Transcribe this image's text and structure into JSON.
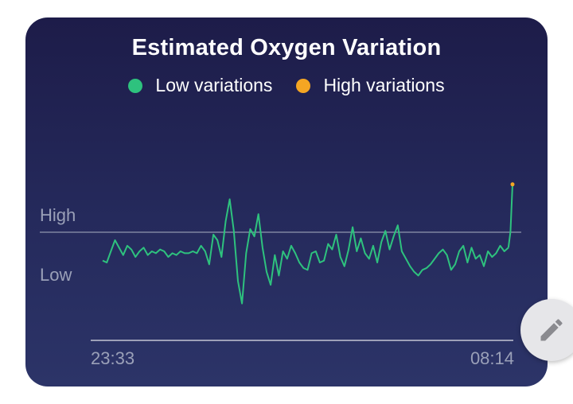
{
  "chart_data": {
    "type": "line",
    "title": "Estimated Oxygen Variation",
    "legend": [
      {
        "name": "Low variations",
        "color": "#2ec27e"
      },
      {
        "name": "High variations",
        "color": "#f5a623"
      }
    ],
    "y_labels": [
      "High",
      "Low"
    ],
    "x_ticks": [
      "23:33",
      "08:14"
    ],
    "ylim": [
      0,
      1
    ],
    "high_threshold": 0.786,
    "grid": false,
    "legend_position": "top-center",
    "series": [
      {
        "name": "Low variations",
        "color": "#2ec27e",
        "x": [
          0,
          0.01,
          0.02,
          0.03,
          0.04,
          0.05,
          0.06,
          0.07,
          0.08,
          0.09,
          0.1,
          0.11,
          0.12,
          0.13,
          0.14,
          0.15,
          0.16,
          0.17,
          0.18,
          0.19,
          0.2,
          0.21,
          0.22,
          0.23,
          0.24,
          0.25,
          0.26,
          0.27,
          0.28,
          0.29,
          0.3,
          0.31,
          0.32,
          0.33,
          0.34,
          0.35,
          0.36,
          0.37,
          0.38,
          0.39,
          0.4,
          0.41,
          0.42,
          0.43,
          0.44,
          0.45,
          0.46,
          0.47,
          0.48,
          0.49,
          0.5,
          0.51,
          0.52,
          0.53,
          0.54,
          0.55,
          0.56,
          0.57,
          0.58,
          0.59,
          0.6,
          0.61,
          0.62,
          0.63,
          0.64,
          0.65,
          0.66,
          0.67,
          0.68,
          0.69,
          0.7,
          0.71,
          0.72,
          0.73,
          0.74,
          0.75,
          0.76,
          0.77,
          0.78,
          0.79,
          0.8,
          0.81,
          0.82,
          0.83,
          0.84,
          0.85,
          0.86,
          0.87,
          0.88,
          0.89,
          0.9,
          0.91,
          0.92,
          0.93,
          0.94,
          0.95,
          0.96,
          0.97,
          0.98,
          0.99
        ],
        "values": [
          0.39,
          0.38,
          0.44,
          0.5,
          0.46,
          0.42,
          0.47,
          0.45,
          0.41,
          0.44,
          0.46,
          0.42,
          0.44,
          0.43,
          0.45,
          0.44,
          0.41,
          0.43,
          0.42,
          0.44,
          0.43,
          0.43,
          0.44,
          0.43,
          0.47,
          0.44,
          0.37,
          0.53,
          0.5,
          0.41,
          0.6,
          0.72,
          0.55,
          0.28,
          0.16,
          0.43,
          0.56,
          0.52,
          0.64,
          0.46,
          0.33,
          0.26,
          0.42,
          0.31,
          0.44,
          0.4,
          0.47,
          0.43,
          0.38,
          0.35,
          0.34,
          0.43,
          0.44,
          0.38,
          0.39,
          0.48,
          0.45,
          0.53,
          0.41,
          0.36,
          0.45,
          0.57,
          0.44,
          0.51,
          0.43,
          0.4,
          0.47,
          0.38,
          0.49,
          0.55,
          0.45,
          0.52,
          0.58,
          0.44,
          0.4,
          0.36,
          0.33,
          0.31,
          0.34,
          0.35,
          0.37,
          0.4,
          0.43,
          0.45,
          0.42,
          0.34,
          0.37,
          0.44,
          0.47,
          0.38,
          0.46,
          0.4,
          0.42,
          0.36,
          0.44,
          0.41,
          0.43,
          0.47,
          0.44,
          0.46
        ]
      },
      {
        "name": "High variations",
        "color": "#f5a623",
        "x": [
          1.0
        ],
        "values": [
          0.8
        ]
      }
    ]
  },
  "fab": {
    "icon": "pencil-icon"
  }
}
